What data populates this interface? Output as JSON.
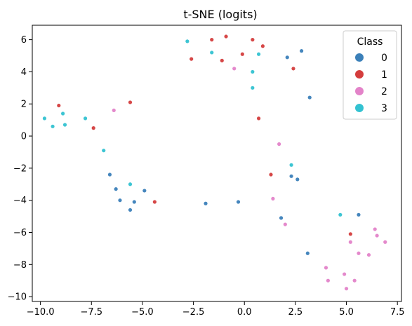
{
  "chart_data": {
    "type": "scatter",
    "title": "t-SNE (logits)",
    "xlabel": "",
    "ylabel": "",
    "xlim": [
      -10.4,
      7.7
    ],
    "ylim": [
      -10.3,
      6.9
    ],
    "xticks": [
      -10.0,
      -7.5,
      -5.0,
      -2.5,
      0.0,
      2.5,
      5.0,
      7.5
    ],
    "xtick_labels": [
      "−10.0",
      "−7.5",
      "−5.0",
      "−2.5",
      "0.0",
      "2.5",
      "5.0",
      "7.5"
    ],
    "yticks": [
      -10,
      -8,
      -6,
      -4,
      -2,
      0,
      2,
      4,
      6
    ],
    "ytick_labels": [
      "−10",
      "−8",
      "−6",
      "−4",
      "−2",
      "0",
      "2",
      "4",
      "6"
    ],
    "grid": false,
    "legend": {
      "title": "Class",
      "placement": "top-right"
    },
    "series": [
      {
        "name": "0",
        "color": "#3b80b9",
        "points": [
          [
            2.1,
            4.9
          ],
          [
            2.8,
            5.3
          ],
          [
            3.2,
            2.4
          ],
          [
            -6.6,
            -2.4
          ],
          [
            -6.3,
            -3.3
          ],
          [
            -6.1,
            -4.0
          ],
          [
            -5.6,
            -4.6
          ],
          [
            -5.4,
            -4.1
          ],
          [
            -4.9,
            -3.4
          ],
          [
            -1.9,
            -4.2
          ],
          [
            -0.3,
            -4.1
          ],
          [
            2.3,
            -2.5
          ],
          [
            2.6,
            -2.7
          ],
          [
            1.8,
            -5.1
          ],
          [
            3.1,
            -7.3
          ],
          [
            5.6,
            -4.9
          ]
        ]
      },
      {
        "name": "1",
        "color": "#d43d3d",
        "points": [
          [
            -9.1,
            1.9
          ],
          [
            -7.4,
            0.5
          ],
          [
            -5.6,
            2.1
          ],
          [
            -4.4,
            -4.1
          ],
          [
            -2.6,
            4.8
          ],
          [
            -1.6,
            6.0
          ],
          [
            -1.1,
            4.7
          ],
          [
            -0.9,
            6.2
          ],
          [
            -0.1,
            5.1
          ],
          [
            0.4,
            6.0
          ],
          [
            0.9,
            5.6
          ],
          [
            2.4,
            4.2
          ],
          [
            0.7,
            1.1
          ],
          [
            1.3,
            -2.4
          ],
          [
            5.2,
            -6.1
          ]
        ]
      },
      {
        "name": "2",
        "color": "#e383c9",
        "points": [
          [
            -6.4,
            1.6
          ],
          [
            -0.5,
            4.2
          ],
          [
            1.7,
            -0.5
          ],
          [
            1.4,
            -3.9
          ],
          [
            2.0,
            -5.5
          ],
          [
            5.2,
            -6.6
          ],
          [
            5.6,
            -7.3
          ],
          [
            6.1,
            -7.4
          ],
          [
            6.4,
            -5.8
          ],
          [
            6.5,
            -6.2
          ],
          [
            6.9,
            -6.6
          ],
          [
            4.0,
            -8.2
          ],
          [
            4.1,
            -9.0
          ],
          [
            4.9,
            -8.6
          ],
          [
            5.0,
            -9.5
          ],
          [
            5.4,
            -9.0
          ]
        ]
      },
      {
        "name": "3",
        "color": "#33c2d1",
        "points": [
          [
            -9.8,
            1.1
          ],
          [
            -9.4,
            0.6
          ],
          [
            -8.9,
            1.4
          ],
          [
            -8.8,
            0.7
          ],
          [
            -7.8,
            1.1
          ],
          [
            -6.9,
            -0.9
          ],
          [
            -5.6,
            -3.0
          ],
          [
            -2.8,
            5.9
          ],
          [
            -1.6,
            5.2
          ],
          [
            0.4,
            4.0
          ],
          [
            0.4,
            3.0
          ],
          [
            0.7,
            5.1
          ],
          [
            2.3,
            -1.8
          ],
          [
            4.7,
            -4.9
          ]
        ]
      }
    ]
  }
}
